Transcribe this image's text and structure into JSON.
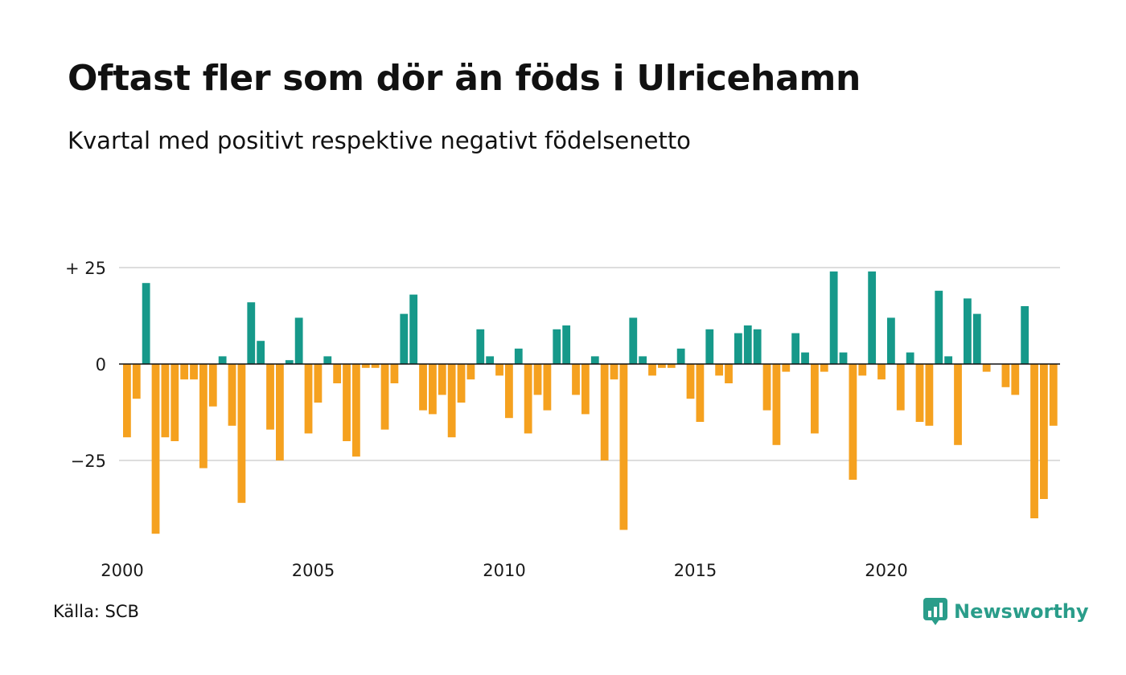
{
  "title": "Oftast fler som dör än föds i Ulricehamn",
  "subtitle": "Kvartal med positivt respektive negativt födelsenetto",
  "source": "Källa: SCB",
  "brand": {
    "name": "Newsworthy",
    "icon": "newsworthy-logo-icon",
    "color": "#2a9d8a"
  },
  "colors": {
    "positive": "#16998a",
    "negative": "#f5a11f",
    "grid": "#dddddd",
    "zero_line": "#111111"
  },
  "chart_data": {
    "type": "bar",
    "title": "Oftast fler som dör än föds i Ulricehamn",
    "subtitle": "Kvartal med positivt respektive negativt födelsenetto",
    "xlabel": "",
    "ylabel": "",
    "x_start": 2000.0,
    "x_step": 0.25,
    "ylim": [
      -45,
      27
    ],
    "y_ticks": [
      {
        "value": 25,
        "label": "+ 25"
      },
      {
        "value": 0,
        "label": "0"
      },
      {
        "value": -25,
        "label": "−25"
      }
    ],
    "x_ticks": [
      "2000",
      "2005",
      "2010",
      "2015",
      "2020"
    ],
    "grid": true,
    "values": [
      -19,
      -9,
      21,
      -44,
      -19,
      -20,
      -4,
      -4,
      -27,
      -11,
      2,
      -16,
      -36,
      16,
      6,
      -17,
      -25,
      1,
      12,
      -18,
      -10,
      2,
      -5,
      -20,
      -24,
      -1,
      -1,
      -17,
      -5,
      13,
      18,
      -12,
      -13,
      -8,
      -19,
      -10,
      -4,
      9,
      2,
      -3,
      -14,
      4,
      -18,
      -8,
      -12,
      9,
      10,
      -8,
      -13,
      2,
      -25,
      -4,
      -43,
      12,
      2,
      -3,
      -1,
      -1,
      4,
      -9,
      -15,
      9,
      -3,
      -5,
      8,
      10,
      9,
      -12,
      -21,
      -2,
      8,
      3,
      -18,
      -2,
      24,
      3,
      -30,
      -3,
      24,
      -4,
      12,
      -12,
      3,
      -15,
      -16,
      19,
      2,
      -21,
      17,
      13,
      -2,
      0,
      -6,
      -8,
      15,
      -40,
      -35,
      -16
    ]
  }
}
